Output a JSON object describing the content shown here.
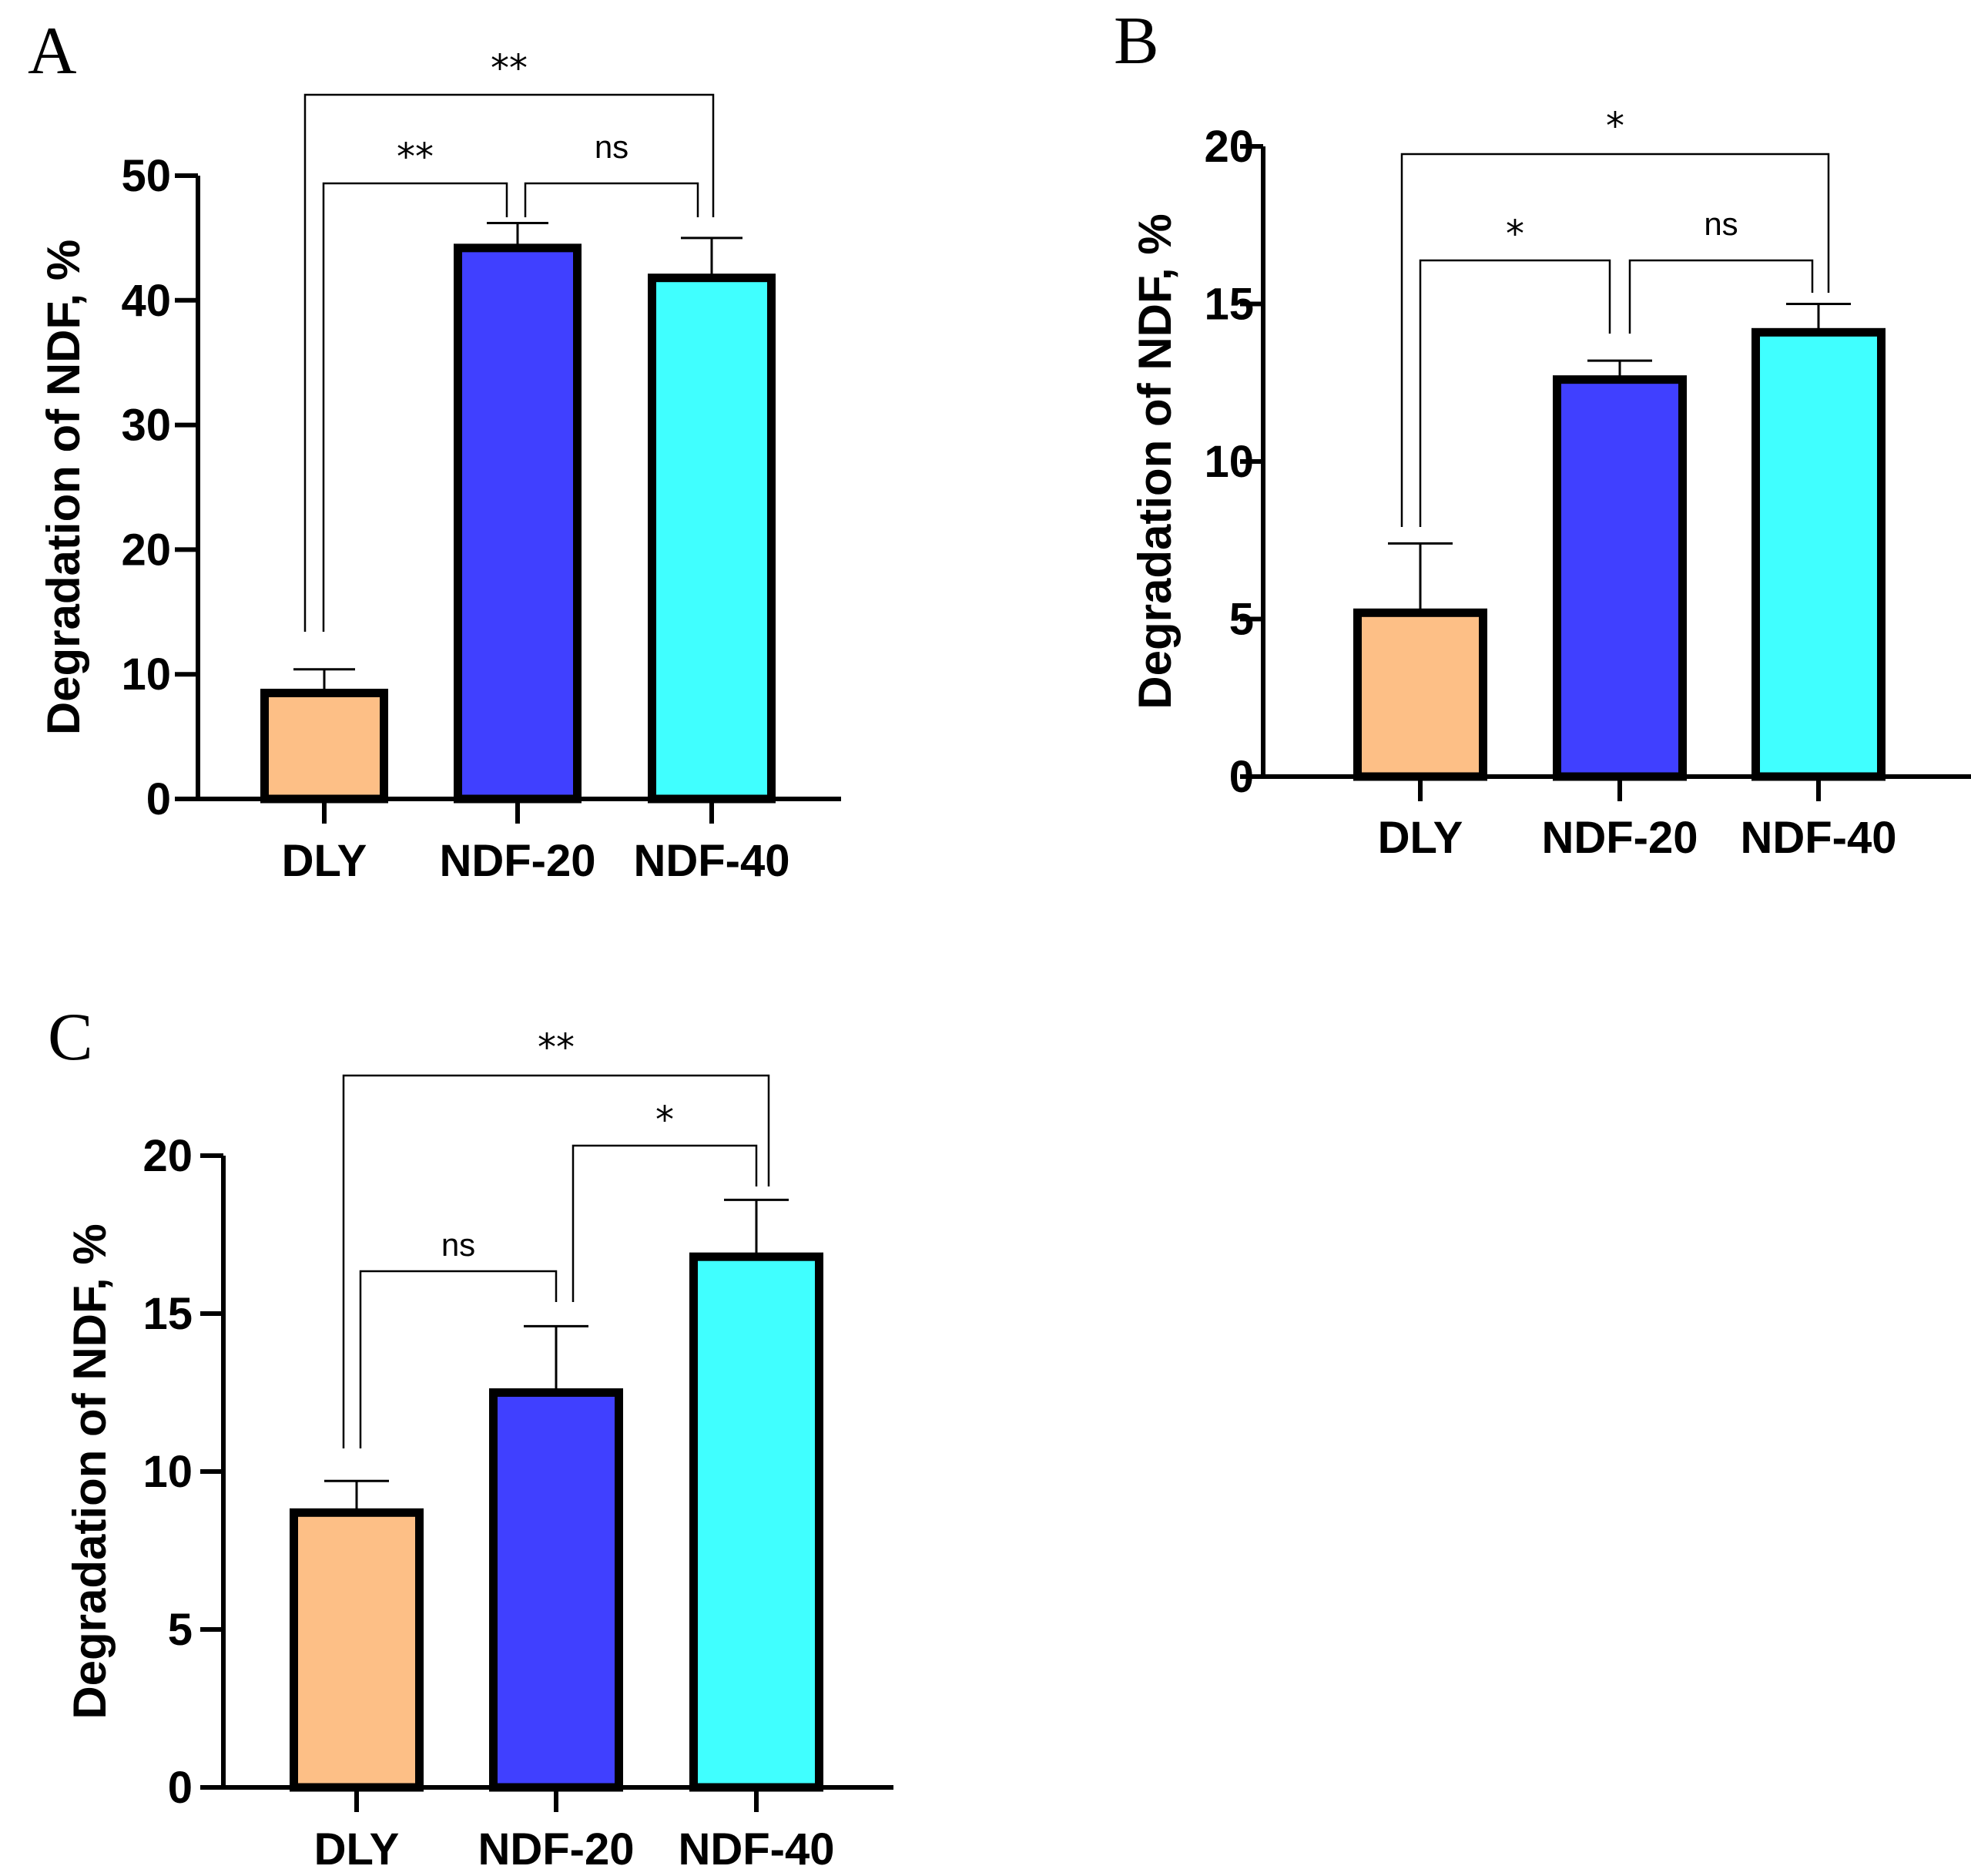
{
  "chart_data": [
    {
      "panel": "A",
      "type": "bar",
      "categories": [
        "DLY",
        "NDF-20",
        "NDF-40"
      ],
      "values": [
        8.5,
        44.2,
        41.8
      ],
      "errors": [
        1.9,
        2.0,
        3.2
      ],
      "colors": [
        "#FDBF86",
        "#4040FF",
        "#40FFFF"
      ],
      "ylabel": "Degradation of NDF, %",
      "xlabel": "",
      "ylim": [
        0,
        50
      ],
      "yticks": [
        "0",
        "10",
        "20",
        "30",
        "40",
        "50"
      ],
      "comparisons": [
        {
          "from": 0,
          "to": 1,
          "label": "**"
        },
        {
          "from": 1,
          "to": 2,
          "label": "ns"
        },
        {
          "from": 0,
          "to": 2,
          "label": "**"
        }
      ]
    },
    {
      "panel": "B",
      "type": "bar",
      "categories": [
        "DLY",
        "NDF-20",
        "NDF-40"
      ],
      "values": [
        5.2,
        12.6,
        14.1
      ],
      "errors": [
        2.2,
        0.6,
        0.9
      ],
      "colors": [
        "#FDBF86",
        "#4040FF",
        "#40FFFF"
      ],
      "ylabel": "Degradation of NDF, %",
      "xlabel": "",
      "ylim": [
        0,
        20
      ],
      "yticks": [
        "0",
        "5",
        "10",
        "15",
        "20"
      ],
      "comparisons": [
        {
          "from": 0,
          "to": 1,
          "label": "*"
        },
        {
          "from": 1,
          "to": 2,
          "label": "ns"
        },
        {
          "from": 0,
          "to": 2,
          "label": "*"
        }
      ]
    },
    {
      "panel": "C",
      "type": "bar",
      "categories": [
        "DLY",
        "NDF-20",
        "NDF-40"
      ],
      "values": [
        8.7,
        12.5,
        16.8
      ],
      "errors": [
        1.0,
        2.1,
        1.8
      ],
      "colors": [
        "#FDBF86",
        "#4040FF",
        "#40FFFF"
      ],
      "ylabel": "Degradation of NDF, %",
      "xlabel": "",
      "ylim": [
        0,
        20
      ],
      "yticks": [
        "0",
        "5",
        "10",
        "15",
        "20"
      ],
      "comparisons": [
        {
          "from": 0,
          "to": 1,
          "label": "ns"
        },
        {
          "from": 1,
          "to": 2,
          "label": "*"
        },
        {
          "from": 0,
          "to": 2,
          "label": "**"
        }
      ]
    }
  ]
}
